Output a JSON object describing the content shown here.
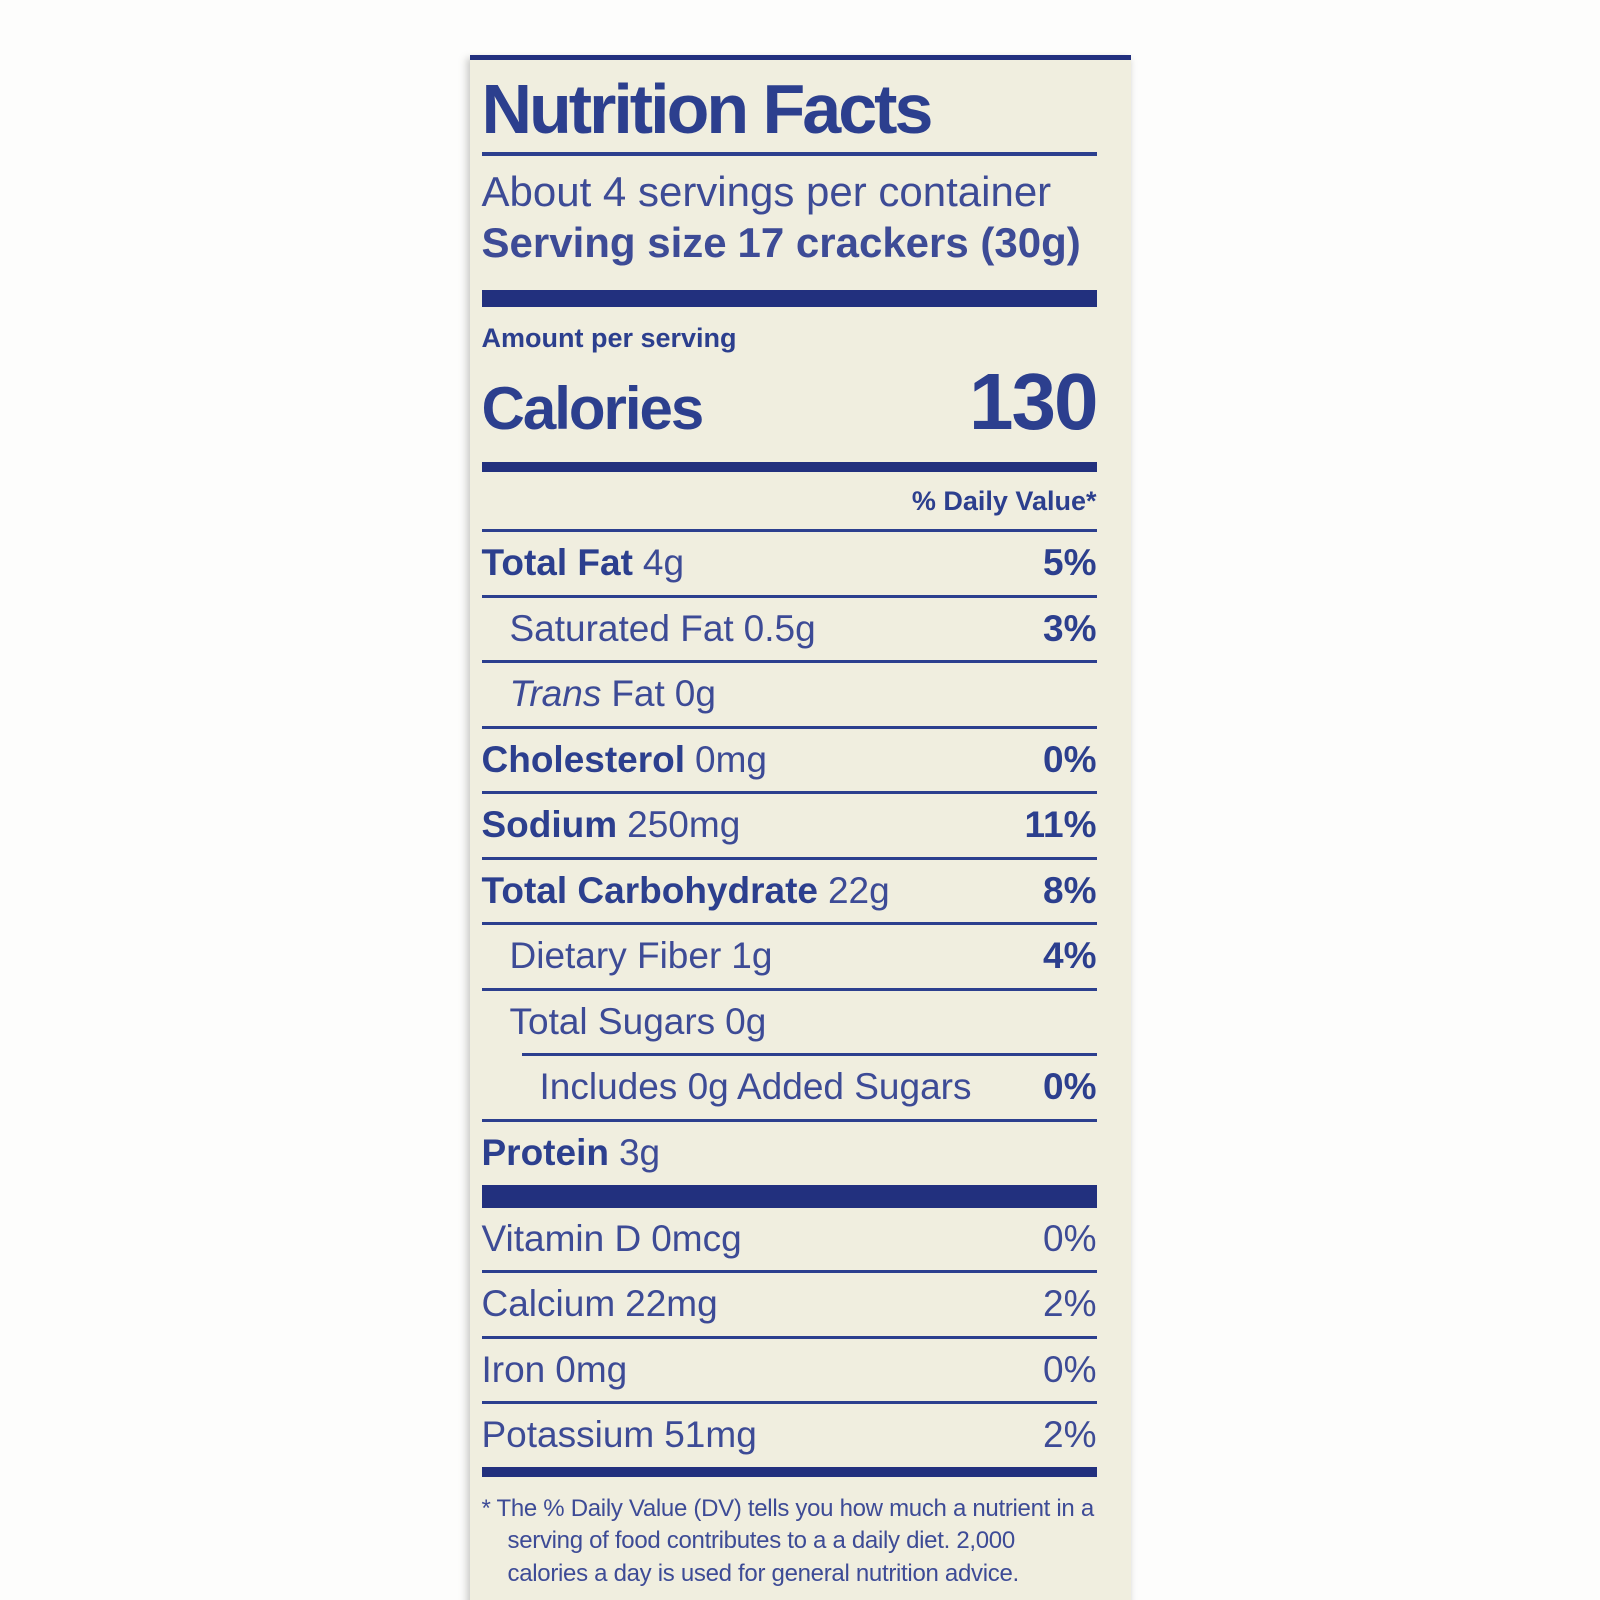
{
  "label": {
    "title": "Nutrition Facts",
    "servings_per_container": "About 4 servings per container",
    "serving_size_label": "Serving size",
    "serving_size_value": "17 crackers (30g)",
    "amount_per_serving": "Amount per serving",
    "calories_label": "Calories",
    "calories_value": "130",
    "daily_value_header": "% Daily Value*",
    "nutrients": [
      {
        "name": "Total Fat",
        "amount": "4g",
        "dv": "5%"
      },
      {
        "name": "Saturated Fat",
        "amount": "0.5g",
        "dv": "3%"
      },
      {
        "name_italic": "Trans",
        "name": "Fat",
        "amount": "0g",
        "dv": ""
      },
      {
        "name": "Cholesterol",
        "amount": "0mg",
        "dv": "0%"
      },
      {
        "name": "Sodium",
        "amount": "250mg",
        "dv": "11%"
      },
      {
        "name": "Total Carbohydrate",
        "amount": "22g",
        "dv": "8%"
      },
      {
        "name": "Dietary Fiber",
        "amount": "1g",
        "dv": "4%"
      },
      {
        "name": "Total Sugars",
        "amount": "0g",
        "dv": ""
      },
      {
        "name": "Includes 0g Added Sugars",
        "amount": "",
        "dv": "0%"
      },
      {
        "name": "Protein",
        "amount": "3g",
        "dv": ""
      }
    ],
    "micronutrients": [
      {
        "name": "Vitamin D",
        "amount": "0mcg",
        "dv": "0%"
      },
      {
        "name": "Calcium",
        "amount": "22mg",
        "dv": "2%"
      },
      {
        "name": "Iron",
        "amount": "0mg",
        "dv": "0%"
      },
      {
        "name": "Potassium",
        "amount": "51mg",
        "dv": "2%"
      }
    ],
    "footnote": "* The % Daily Value (DV) tells you how much a nutrient in a serving of food contributes to a a daily diet. 2,000 calories a day is used for general nutrition advice.",
    "colors": {
      "text_blue": "#2c3f8e",
      "bar_blue": "#22307e",
      "label_bg": "#f0eedf"
    }
  }
}
